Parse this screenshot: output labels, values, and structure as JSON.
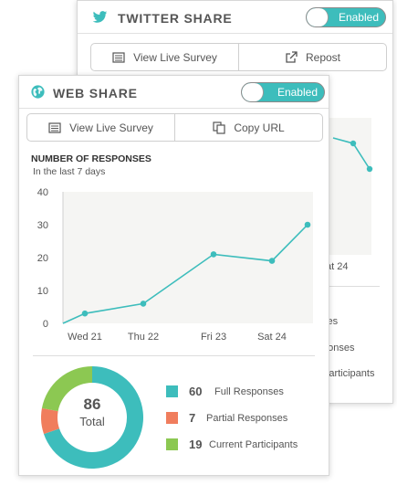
{
  "twitter": {
    "title": "TWITTER SHARE",
    "toggle_label": "Enabled",
    "view_button": "View Live Survey",
    "repost_button": "Repost",
    "x_tick_partial": "at 24",
    "legend_partial": [
      "ses",
      "ponses",
      "Participants"
    ]
  },
  "web": {
    "title": "WEB SHARE",
    "toggle_label": "Enabled",
    "view_button": "View Live Survey",
    "copy_button": "Copy URL",
    "section_title": "NUMBER OF RESPONSES",
    "section_subtitle": "In the last 7 days"
  },
  "chart_data": {
    "type": "line",
    "x": [
      "",
      "Wed 21",
      "Thu 22",
      "Fri 23",
      "Sat 24",
      ""
    ],
    "x_tick_labels": [
      "Wed 21",
      "Thu 22",
      "Fri 23",
      "Sat 24"
    ],
    "values": [
      0,
      3,
      6,
      21,
      19,
      30
    ],
    "ylim": [
      0,
      40
    ],
    "yticks": [
      0,
      10,
      20,
      30,
      40
    ],
    "grid": false
  },
  "donut": {
    "total": "86",
    "total_label": "Total",
    "segments": [
      {
        "value": 60,
        "label": "Full Responses",
        "color": "#3dbdbc"
      },
      {
        "value": 7,
        "label": "Partial Responses",
        "color": "#f07d5d"
      },
      {
        "value": 19,
        "label": "Current Participants",
        "color": "#8cc852"
      }
    ]
  },
  "colors": {
    "accent": "#3dbdbc",
    "plot_bg": "#f5f5f3"
  },
  "icons": {
    "twitter": "twitter-bird-icon",
    "web": "globe-icon",
    "view": "survey-list-icon",
    "repost": "external-link-icon",
    "copy": "copy-icon"
  }
}
